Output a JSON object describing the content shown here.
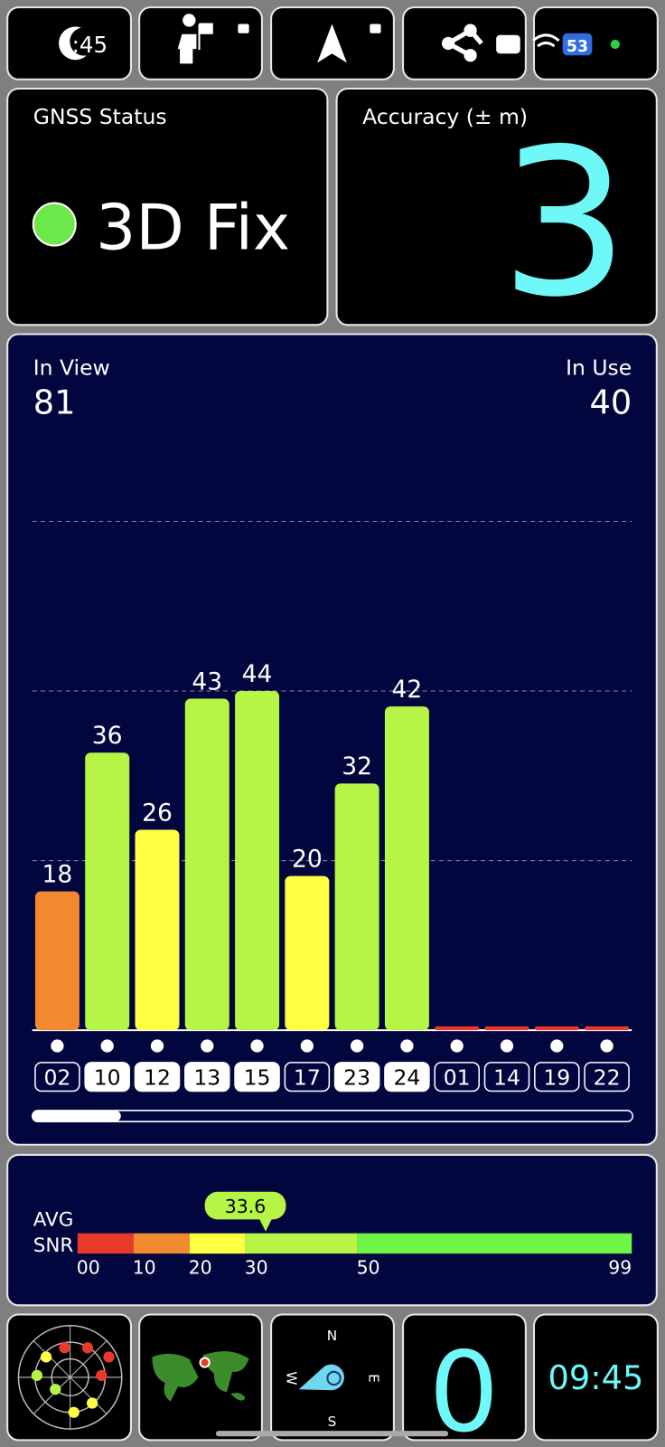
{
  "status_bar": {
    "time": ":45",
    "battery": "53"
  },
  "gnss_status": {
    "title": "GNSS Status",
    "value": "3D Fix"
  },
  "accuracy": {
    "title": "Accuracy (± m)",
    "value": "3"
  },
  "satellites": {
    "in_view_label": "In View",
    "in_view": "81",
    "in_use_label": "In Use",
    "in_use": "40"
  },
  "chart_data": {
    "type": "bar",
    "categories": [
      "02",
      "10",
      "12",
      "13",
      "15",
      "17",
      "23",
      "24",
      "01",
      "14",
      "19",
      "22"
    ],
    "values": [
      18,
      36,
      26,
      43,
      44,
      20,
      32,
      42,
      0.5,
      0.5,
      0.5,
      0.5
    ],
    "value_labels": [
      "18",
      "36",
      "26",
      "43",
      "44",
      "20",
      "32",
      "42",
      null,
      null,
      null,
      null
    ],
    "colors": [
      "#f0892f",
      "#b6f545",
      "#ffff44",
      "#b6f545",
      "#b6f545",
      "#ffff44",
      "#b6f545",
      "#b6f545",
      "#e8392a",
      "#e8392a",
      "#e8392a",
      "#e8392a"
    ],
    "in_use": [
      false,
      true,
      true,
      true,
      true,
      false,
      true,
      true,
      false,
      false,
      false,
      false
    ],
    "ylim": [
      0,
      88
    ],
    "grid": true
  },
  "snr": {
    "label": [
      "AVG",
      "SNR"
    ],
    "average": 33.6,
    "xlim": [
      0,
      99
    ],
    "xticks": [
      {
        "value": 0,
        "label": "00"
      },
      10,
      20,
      30,
      50,
      99
    ],
    "colors": [
      "#e8392a",
      "#f0892f",
      "#ffff44",
      "#b6f545",
      "#6ef545"
    ]
  },
  "dashboard": {
    "compass": {
      "north": "N",
      "east": "E",
      "south": "S",
      "west": "W"
    },
    "speed": "0",
    "clock": "09:45"
  }
}
